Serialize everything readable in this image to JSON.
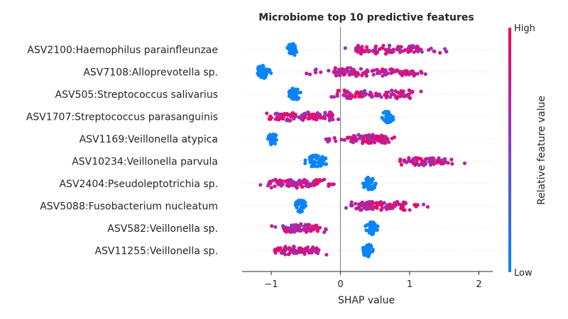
{
  "chart_data": {
    "type": "scatter",
    "title": "Microbiome top 10 predictive features",
    "xlabel": "SHAP value",
    "xlim": [
      -1.42,
      2.2
    ],
    "xticks": [
      -1,
      0,
      1,
      2
    ],
    "xtick_labels": [
      "−1",
      "0",
      "1",
      "2"
    ],
    "colorbar": {
      "label": "Relative feature value",
      "high_label": "High",
      "low_label": "Low",
      "low_color": "#008afb",
      "mid_color": "#7c3fd9",
      "high_color": "#ff0052"
    },
    "features": [
      {
        "label": "ASV2100:Haemophilus parainfleunzae",
        "low": {
          "center": -0.7,
          "spread": 0.1,
          "count": 50
        },
        "high": {
          "min": 0.05,
          "max": 1.7,
          "dense_min": 0.2,
          "dense_max": 1.15,
          "count": 90
        }
      },
      {
        "label": "ASV7108:Alloprevotella sp.",
        "low": {
          "center": -1.12,
          "spread": 0.12,
          "count": 45
        },
        "high": {
          "min": -0.5,
          "max": 1.32,
          "dense_min": -0.1,
          "dense_max": 1.1,
          "count": 120
        }
      },
      {
        "label": "ASV505:Streptococcus salivarius",
        "low": {
          "center": -0.67,
          "spread": 0.11,
          "count": 45
        },
        "high": {
          "min": -0.15,
          "max": 1.22,
          "dense_min": 0.05,
          "dense_max": 1.05,
          "count": 90
        }
      },
      {
        "label": "ASV1707:Streptococcus parasanguinis",
        "low": {
          "center": 0.68,
          "spread": 0.1,
          "count": 45
        },
        "high": {
          "min": -1.12,
          "max": 0.08,
          "dense_min": -1.0,
          "dense_max": -0.1,
          "count": 110
        }
      },
      {
        "label": "ASV1169:Veillonella atypica",
        "low": {
          "center": -0.98,
          "spread": 0.08,
          "count": 35
        },
        "high": {
          "min": -0.25,
          "max": 0.85,
          "dense_min": 0.1,
          "dense_max": 0.7,
          "count": 100
        }
      },
      {
        "label": "ASV10234:Veillonella parvula",
        "low": {
          "center": -0.35,
          "spread": 0.16,
          "count": 60
        },
        "high": {
          "min": 0.82,
          "max": 2.05,
          "dense_min": 0.85,
          "dense_max": 1.55,
          "count": 65
        }
      },
      {
        "label": "ASV2404:Pseudoleptotrichia sp.",
        "low": {
          "center": 0.42,
          "spread": 0.12,
          "count": 50
        },
        "high": {
          "min": -1.2,
          "max": -0.05,
          "dense_min": -1.05,
          "dense_max": -0.25,
          "count": 95
        }
      },
      {
        "label": "ASV5088:Fusobacterium nucleatum",
        "low": {
          "center": -0.57,
          "spread": 0.1,
          "count": 40
        },
        "high": {
          "min": 0.05,
          "max": 1.28,
          "dense_min": 0.15,
          "dense_max": 0.95,
          "count": 100
        }
      },
      {
        "label": "ASV582:Veillonella sp.",
        "low": {
          "center": 0.45,
          "spread": 0.1,
          "count": 45
        },
        "high": {
          "min": -1.0,
          "max": -0.2,
          "dense_min": -0.85,
          "dense_max": -0.3,
          "count": 85
        }
      },
      {
        "label": "ASV11255:Veillonella sp.",
        "low": {
          "center": 0.4,
          "spread": 0.1,
          "count": 45
        },
        "high": {
          "min": -1.02,
          "max": -0.2,
          "dense_min": -0.95,
          "dense_max": -0.3,
          "count": 85
        }
      }
    ]
  }
}
